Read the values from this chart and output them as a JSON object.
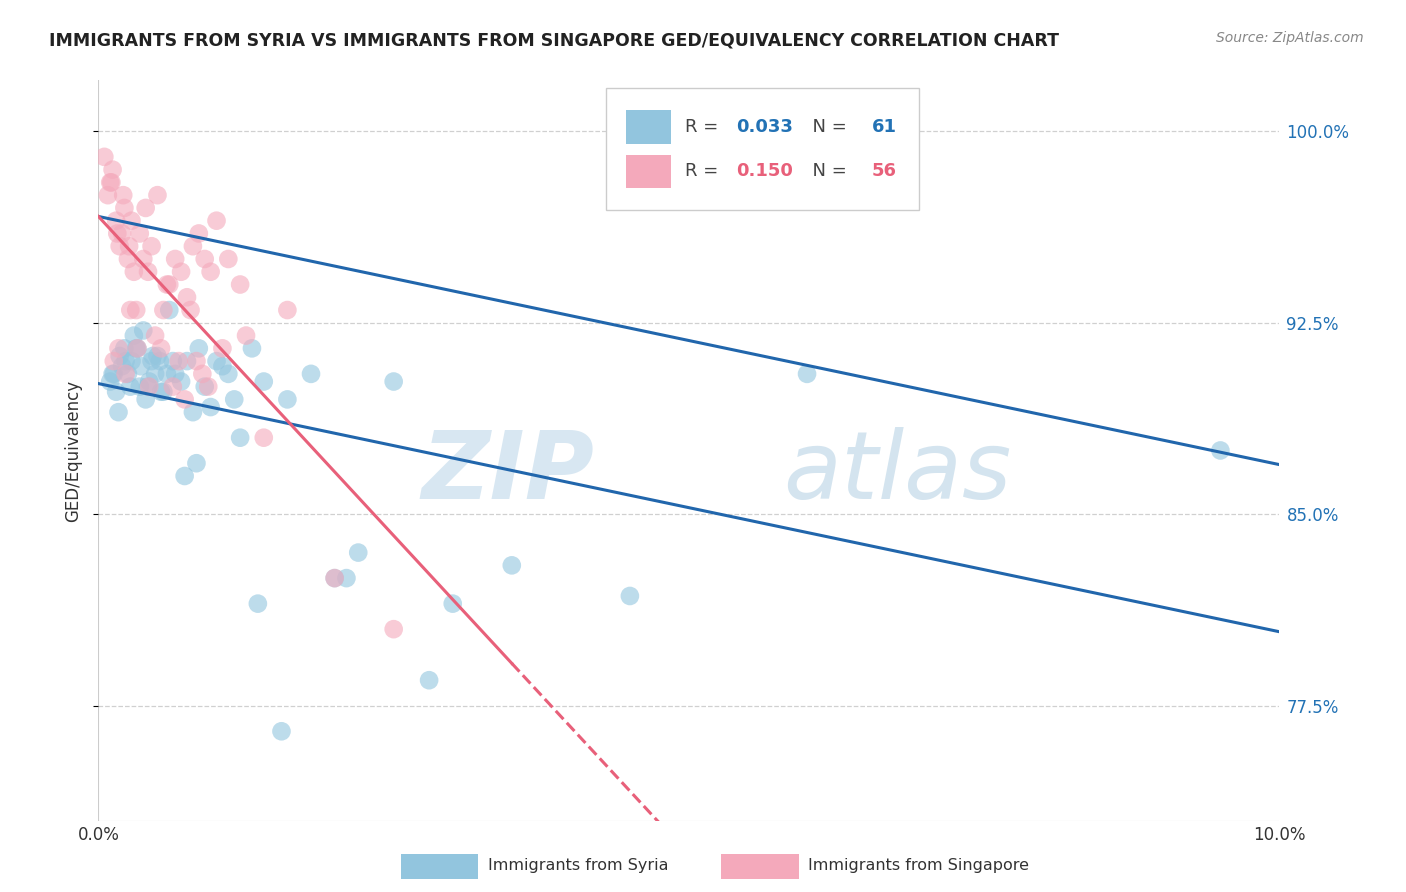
{
  "title": "IMMIGRANTS FROM SYRIA VS IMMIGRANTS FROM SINGAPORE GED/EQUIVALENCY CORRELATION CHART",
  "source": "Source: ZipAtlas.com",
  "ylabel": "GED/Equivalency",
  "yticks": [
    77.5,
    85.0,
    92.5,
    100.0
  ],
  "ytick_labels": [
    "77.5%",
    "85.0%",
    "92.5%",
    "100.0%"
  ],
  "xlim": [
    0.0,
    10.0
  ],
  "ylim": [
    73.0,
    102.0
  ],
  "legend_syria_R": "0.033",
  "legend_syria_N": "61",
  "legend_singapore_R": "0.150",
  "legend_singapore_N": "56",
  "syria_color": "#92c5de",
  "singapore_color": "#f4a9bb",
  "syria_line_color": "#2166ac",
  "singapore_line_color": "#e8607a",
  "watermark_zip": "ZIP",
  "watermark_atlas": "atlas",
  "syria_x": [
    0.1,
    0.12,
    0.15,
    0.18,
    0.2,
    0.22,
    0.25,
    0.28,
    0.3,
    0.32,
    0.35,
    0.38,
    0.4,
    0.42,
    0.45,
    0.48,
    0.5,
    0.52,
    0.55,
    0.58,
    0.6,
    0.65,
    0.7,
    0.75,
    0.8,
    0.85,
    0.9,
    0.95,
    1.0,
    1.05,
    1.1,
    1.2,
    1.3,
    1.4,
    1.6,
    1.8,
    2.0,
    2.2,
    2.5,
    3.0,
    0.13,
    0.17,
    0.23,
    0.27,
    0.33,
    0.43,
    0.53,
    0.63,
    0.73,
    0.83,
    1.15,
    1.35,
    1.55,
    2.1,
    2.8,
    3.5,
    4.5,
    6.0,
    9.5,
    0.36,
    0.46
  ],
  "syria_y": [
    90.2,
    90.5,
    89.8,
    91.2,
    90.8,
    91.5,
    90.5,
    91.0,
    92.0,
    91.5,
    90.0,
    92.2,
    89.5,
    90.0,
    91.0,
    90.5,
    91.2,
    91.0,
    89.8,
    90.5,
    93.0,
    90.5,
    90.2,
    91.0,
    89.0,
    91.5,
    90.0,
    89.2,
    91.0,
    90.8,
    90.5,
    88.0,
    91.5,
    90.2,
    89.5,
    90.5,
    82.5,
    83.5,
    90.2,
    81.5,
    90.5,
    89.0,
    91.0,
    90.0,
    91.5,
    90.2,
    89.8,
    91.0,
    86.5,
    87.0,
    89.5,
    81.5,
    76.5,
    82.5,
    78.5,
    83.0,
    81.8,
    90.5,
    87.5,
    90.8,
    91.2
  ],
  "singapore_x": [
    0.05,
    0.08,
    0.1,
    0.12,
    0.15,
    0.18,
    0.2,
    0.22,
    0.25,
    0.28,
    0.3,
    0.32,
    0.35,
    0.38,
    0.4,
    0.42,
    0.45,
    0.5,
    0.55,
    0.6,
    0.65,
    0.7,
    0.75,
    0.8,
    0.85,
    0.9,
    0.95,
    1.0,
    1.1,
    1.2,
    1.4,
    1.6,
    2.0,
    0.13,
    0.23,
    0.33,
    0.43,
    0.53,
    0.63,
    0.73,
    0.83,
    0.93,
    1.05,
    1.25,
    0.17,
    0.27,
    0.48,
    0.68,
    0.88,
    2.5,
    0.11,
    0.16,
    0.21,
    0.26,
    0.58,
    0.78
  ],
  "singapore_y": [
    99.0,
    97.5,
    98.0,
    98.5,
    96.5,
    95.5,
    96.0,
    97.0,
    95.0,
    96.5,
    94.5,
    93.0,
    96.0,
    95.0,
    97.0,
    94.5,
    95.5,
    97.5,
    93.0,
    94.0,
    95.0,
    94.5,
    93.5,
    95.5,
    96.0,
    95.0,
    94.5,
    96.5,
    95.0,
    94.0,
    88.0,
    93.0,
    82.5,
    91.0,
    90.5,
    91.5,
    90.0,
    91.5,
    90.0,
    89.5,
    91.0,
    90.0,
    91.5,
    92.0,
    91.5,
    93.0,
    92.0,
    91.0,
    90.5,
    80.5,
    98.0,
    96.0,
    97.5,
    95.5,
    94.0,
    93.0
  ],
  "singapore_solid_xmax": 3.5,
  "singapore_dashed_xmax": 10.0
}
